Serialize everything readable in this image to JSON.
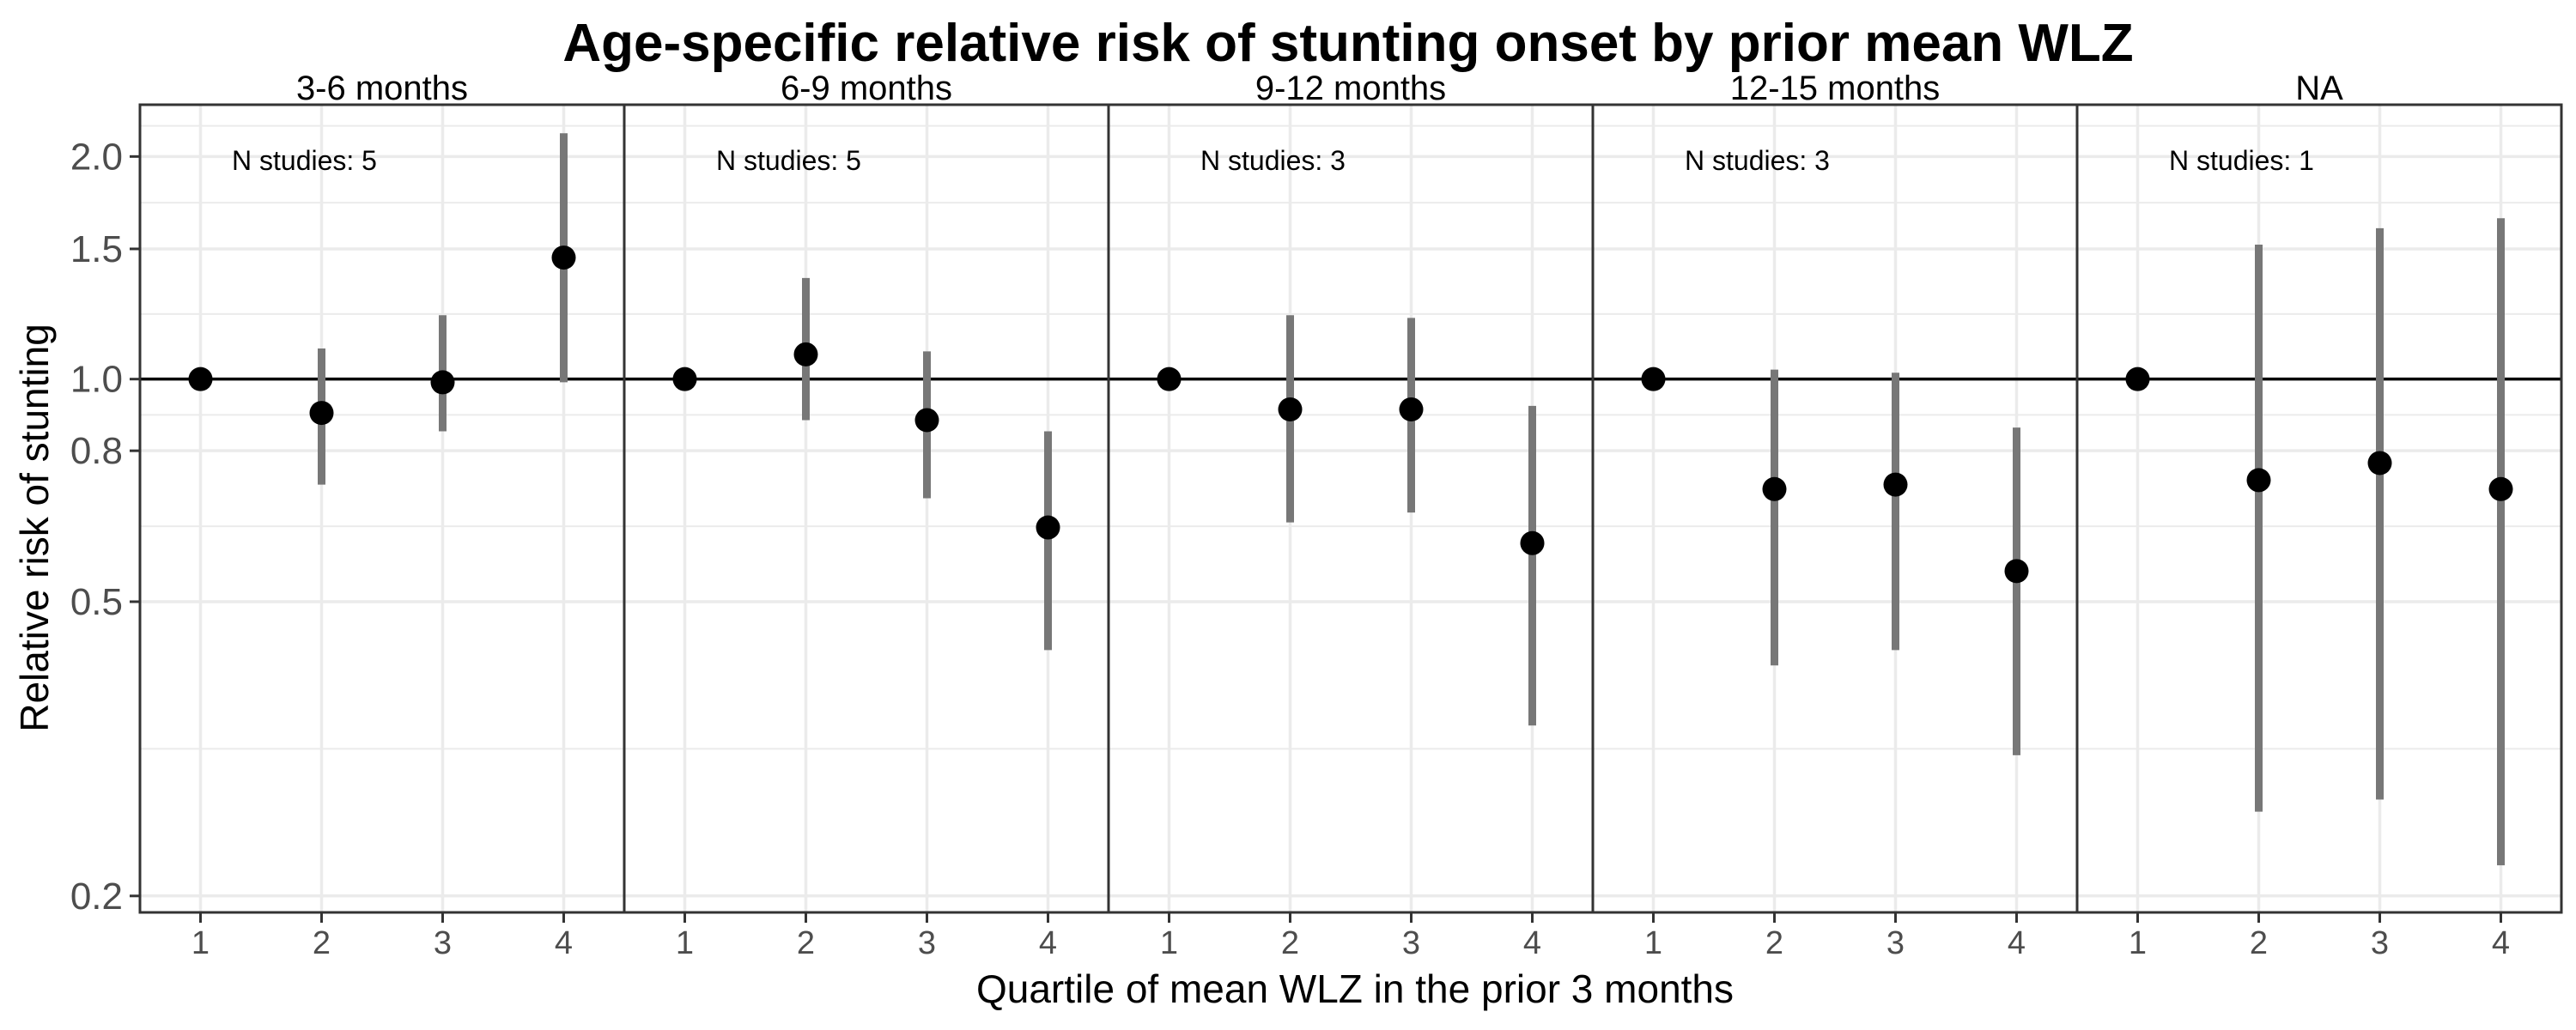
{
  "chart_data": {
    "type": "scatter",
    "title": "Age-specific relative risk of stunting onset by prior mean WLZ",
    "xlabel": "Quartile of mean WLZ in the prior 3 months",
    "ylabel": "Relative risk of stunting",
    "y_scale": "log",
    "ylim": [
      0.19,
      2.35
    ],
    "y_ticks": [
      0.2,
      0.5,
      0.8,
      1.0,
      1.5,
      2.0
    ],
    "y_tick_labels": [
      "0.2",
      "0.5",
      "0.8",
      "1.0",
      "1.5",
      "2.0"
    ],
    "x_categories": [
      "1",
      "2",
      "3",
      "4"
    ],
    "reference_line": 1.0,
    "grid": true,
    "colors": {
      "point": "#000000",
      "error_bar": "#777777",
      "grid": "#ebebeb",
      "border": "#333333"
    },
    "panels": [
      {
        "label": "3-6 months",
        "annotation": "N studies: 5",
        "points": [
          {
            "x": "1",
            "y": 1.0,
            "lo": null,
            "hi": null
          },
          {
            "x": "2",
            "y": 0.9,
            "lo": 0.72,
            "hi": 1.1
          },
          {
            "x": "3",
            "y": 0.99,
            "lo": 0.85,
            "hi": 1.22
          },
          {
            "x": "4",
            "y": 1.46,
            "lo": 0.99,
            "hi": 2.15
          }
        ]
      },
      {
        "label": "6-9 months",
        "annotation": "N studies: 5",
        "points": [
          {
            "x": "1",
            "y": 1.0,
            "lo": null,
            "hi": null
          },
          {
            "x": "2",
            "y": 1.08,
            "lo": 0.88,
            "hi": 1.37
          },
          {
            "x": "3",
            "y": 0.88,
            "lo": 0.69,
            "hi": 1.09
          },
          {
            "x": "4",
            "y": 0.63,
            "lo": 0.43,
            "hi": 0.85
          }
        ]
      },
      {
        "label": "9-12 months",
        "annotation": "N studies: 3",
        "points": [
          {
            "x": "1",
            "y": 1.0,
            "lo": null,
            "hi": null
          },
          {
            "x": "2",
            "y": 0.91,
            "lo": 0.64,
            "hi": 1.22
          },
          {
            "x": "3",
            "y": 0.91,
            "lo": 0.66,
            "hi": 1.21
          },
          {
            "x": "4",
            "y": 0.6,
            "lo": 0.34,
            "hi": 0.92
          }
        ]
      },
      {
        "label": "12-15 months",
        "annotation": "N studies: 3",
        "points": [
          {
            "x": "1",
            "y": 1.0,
            "lo": null,
            "hi": null
          },
          {
            "x": "2",
            "y": 0.71,
            "lo": 0.41,
            "hi": 1.03
          },
          {
            "x": "3",
            "y": 0.72,
            "lo": 0.43,
            "hi": 1.02
          },
          {
            "x": "4",
            "y": 0.55,
            "lo": 0.31,
            "hi": 0.86
          }
        ]
      },
      {
        "label": "NA",
        "annotation": "N studies: 1",
        "points": [
          {
            "x": "1",
            "y": 1.0,
            "lo": null,
            "hi": null
          },
          {
            "x": "2",
            "y": 0.73,
            "lo": 0.26,
            "hi": 1.52
          },
          {
            "x": "3",
            "y": 0.77,
            "lo": 0.27,
            "hi": 1.6
          },
          {
            "x": "4",
            "y": 0.71,
            "lo": 0.22,
            "hi": 1.65
          }
        ]
      }
    ]
  }
}
